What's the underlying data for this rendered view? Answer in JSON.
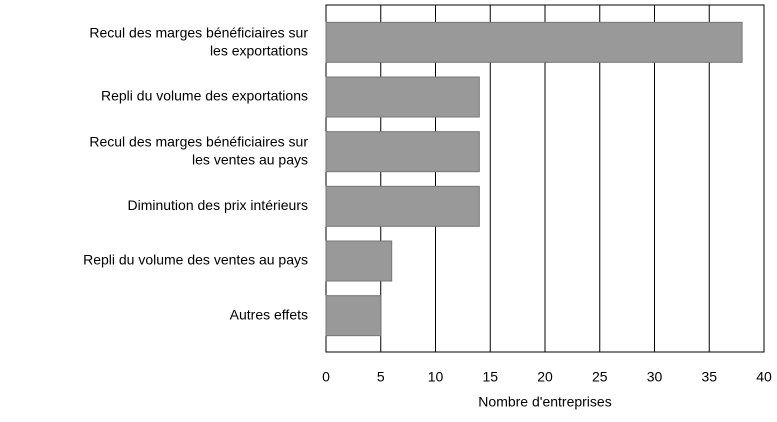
{
  "chart_data": {
    "type": "bar",
    "orientation": "horizontal",
    "categories": [
      "Recul des marges bénéficiaires sur\nles exportations",
      "Repli du volume des exportations",
      "Recul des marges bénéficiaires sur\nles ventes au pays",
      "Diminution des prix intérieurs",
      "Repli du volume des ventes au pays",
      "Autres effets"
    ],
    "values": [
      38,
      14,
      14,
      14,
      6,
      5
    ],
    "color": "#999999",
    "xlabel": "Nombre d'entreprises",
    "xlim": [
      0,
      40
    ],
    "xticks": [
      0,
      5,
      10,
      15,
      20,
      25,
      30,
      35,
      40
    ],
    "grid": true
  }
}
